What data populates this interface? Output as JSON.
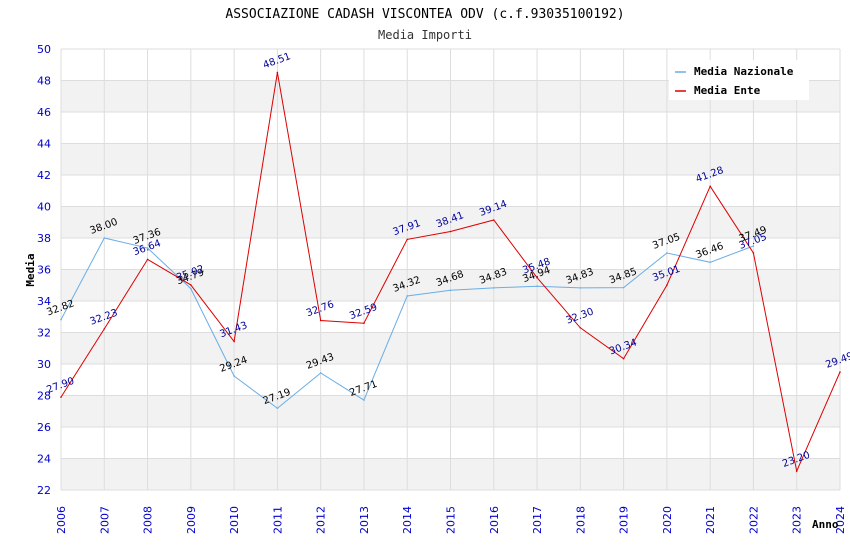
{
  "chart_data": {
    "type": "line",
    "title": "ASSOCIAZIONE CADASH VISCONTEA ODV (c.f.93035100192)",
    "subtitle": "Media Importi",
    "xlabel": "Anno",
    "ylabel": "Media",
    "ylim": [
      22,
      50
    ],
    "ytick_step": 2,
    "categories": [
      "2006",
      "2007",
      "2008",
      "2009",
      "2010",
      "2011",
      "2012",
      "2013",
      "2014",
      "2015",
      "2016",
      "2017",
      "2018",
      "2019",
      "2020",
      "2021",
      "2022",
      "2023",
      "2024"
    ],
    "series": [
      {
        "name": "Media Nazionale",
        "color": "#6aaee6",
        "label_color": "#000000",
        "values": [
          32.82,
          38.0,
          37.36,
          34.79,
          29.24,
          27.19,
          29.43,
          27.71,
          34.32,
          34.68,
          34.83,
          34.94,
          34.83,
          34.85,
          37.05,
          36.46,
          37.49,
          null,
          null
        ],
        "labels": [
          "32.82",
          "38.00",
          "37.36",
          "34.79",
          "29.24",
          "27.19",
          "29.43",
          "27.71",
          "34.32",
          "34.68",
          "34.83",
          "34.94",
          "34.83",
          "34.85",
          "37.05",
          "36.46",
          "37.49",
          null,
          null
        ]
      },
      {
        "name": "Media Ente",
        "color": "#dd0000",
        "label_color": "#000099",
        "values": [
          27.9,
          32.23,
          36.64,
          35.02,
          31.43,
          48.51,
          32.76,
          32.59,
          37.91,
          38.41,
          39.14,
          35.48,
          32.3,
          30.34,
          35.01,
          41.28,
          37.05,
          23.2,
          29.49
        ],
        "labels": [
          "27.90",
          "32.23",
          "36.64",
          "35.02",
          "31.43",
          "48.51",
          "32.76",
          "32.59",
          "37.91",
          "38.41",
          "39.14",
          "35.48",
          "32.30",
          "30.34",
          "35.01",
          "41.28",
          "37.05",
          "23.20",
          "29.49"
        ]
      }
    ],
    "legend": {
      "position": "top-right"
    },
    "grid": true
  }
}
